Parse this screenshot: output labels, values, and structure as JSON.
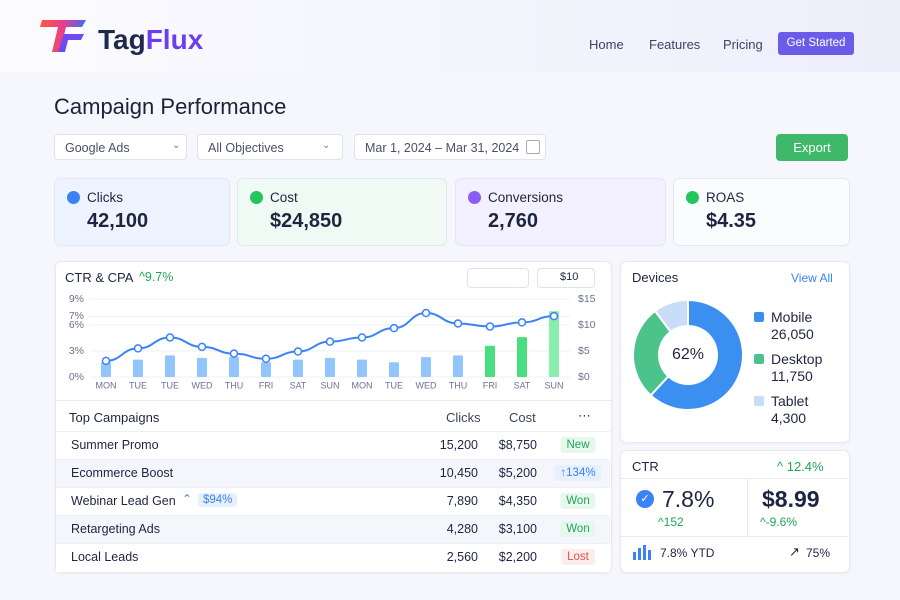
{
  "header": {
    "brand": "TagFlux",
    "nav": [
      "Home",
      "Features",
      "Pricing"
    ],
    "cta": "Get Started"
  },
  "page": {
    "title": "Campaign Performance",
    "filters": [
      "Google Ads",
      "All Objectives",
      "Mar 1, 2024 – Mar 31, 2024"
    ],
    "export": "Export"
  },
  "kpis": [
    {
      "label": "Clicks",
      "value": "42,100",
      "color": "#3b82f6"
    },
    {
      "label": "Cost",
      "value": "$24,850",
      "color": "#22c55e"
    },
    {
      "label": "Conversions",
      "value": "2,760",
      "color": "#8b5cf6"
    },
    {
      "label": "ROAS",
      "value": "$4.35",
      "color": "#22c55e"
    }
  ],
  "chart": {
    "title": "CTR & CPA",
    "change": "9.7%",
    "control": "$10",
    "categories": [
      "MON",
      "TUE",
      "TUE",
      "WED",
      "THU",
      "FRI",
      "SAT",
      "SUN",
      "MON",
      "TUE",
      "WED",
      "THU",
      "FRI",
      "SAT",
      "SUN"
    ],
    "ylim": [
      0,
      9
    ],
    "yticks": [
      {
        "value": 0,
        "label": "0%"
      },
      {
        "value": 3,
        "label": "3%"
      },
      {
        "value": 6,
        "label": "6%"
      },
      {
        "value": 7,
        "label": "7%"
      },
      {
        "value": 9,
        "label": "9%"
      }
    ],
    "y2lim": [
      0,
      15
    ],
    "y2ticks": [
      {
        "value": 0,
        "label": "$0"
      },
      {
        "value": 5,
        "label": "$5"
      },
      {
        "value": 10,
        "label": "$10"
      },
      {
        "value": 15,
        "label": "$15"
      }
    ],
    "bars": {
      "values": [
        1.7,
        2.0,
        2.5,
        2.2,
        2.3,
        1.7,
        2.0,
        2.2,
        2.0,
        1.7,
        2.3,
        2.5,
        3.6,
        4.6,
        7.6
      ],
      "colors": [
        "#93c5fd",
        "#93c5fd",
        "#93c5fd",
        "#93c5fd",
        "#93c5fd",
        "#93c5fd",
        "#93c5fd",
        "#93c5fd",
        "#93c5fd",
        "#93c5fd",
        "#93c5fd",
        "#93c5fd",
        "#4ade80",
        "#4ade80",
        "#86efac"
      ]
    },
    "line": {
      "axis": "y2",
      "color": "#3b82f6",
      "values": [
        3.1,
        5.5,
        7.6,
        5.8,
        4.5,
        3.5,
        4.9,
        6.8,
        7.6,
        9.4,
        12.3,
        10.3,
        9.7,
        10.5,
        11.7
      ]
    }
  },
  "table": {
    "title": "Top Campaigns",
    "columns": [
      "Clicks",
      "Cost"
    ],
    "menu": "⋯",
    "rows": [
      {
        "name": "Summer Promo",
        "clicks": "15,200",
        "cost": "$8,750",
        "status": "New",
        "kind": "green"
      },
      {
        "name": "Ecommerce Boost",
        "clicks": "10,450",
        "cost": "$5,200",
        "status": "↑134%",
        "kind": "blue"
      },
      {
        "name": "Webinar Lead Gen",
        "note": "$94%",
        "clicks": "7,890",
        "cost": "$4,350",
        "status": "Won",
        "kind": "green"
      },
      {
        "name": "Retargeting Ads",
        "clicks": "4,280",
        "cost": "$3,100",
        "status": "Won",
        "kind": "green"
      },
      {
        "name": "Local Leads",
        "clicks": "2,560",
        "cost": "$2,200",
        "status": "Lost",
        "kind": "red"
      }
    ]
  },
  "devices": {
    "title": "Devices",
    "link": "View All",
    "center": "62%",
    "segments": [
      {
        "name": "Mobile",
        "value": 26050,
        "value_label": "26,050",
        "color": "#3b8ff0"
      },
      {
        "name": "Desktop",
        "value": 11750,
        "value_label": "11,750",
        "color": "#4cc38a"
      },
      {
        "name": "Tablet",
        "value": 4300,
        "value_label": "4,300",
        "color": "#c9dcf8"
      }
    ]
  },
  "ctr": {
    "title": "CTR",
    "change": "12.4%",
    "value": "7.8%",
    "sub": "152",
    "cost": "$8.99",
    "cost_change": "-9.6%",
    "ytd": "7.8% YTD",
    "share": "75%"
  }
}
